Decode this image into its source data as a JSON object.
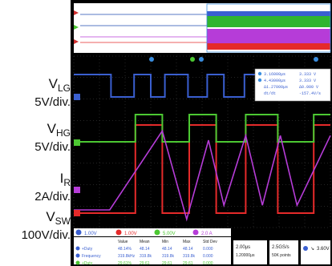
{
  "labels": {
    "vlg": {
      "name": "V",
      "sub": "LG",
      "scale": "5V/div."
    },
    "vhg": {
      "name": "V",
      "sub": "HG",
      "scale": "5V/div."
    },
    "ir": {
      "name": "I",
      "sub": "R",
      "scale": "2A/div."
    },
    "vsw": {
      "name": "V",
      "sub": "SW",
      "scale": "100V/div."
    }
  },
  "colors": {
    "vlg": "#3a5fd0",
    "vhg": "#4cc832",
    "ir": "#b63cd8",
    "vsw": "#e52a2a",
    "grid": "#5a5a5a",
    "background": "#000000",
    "panel": "#ffffff"
  },
  "cursor_box": {
    "rows": [
      {
        "a": "3.16000μs",
        "b": "3.333 V"
      },
      {
        "a": "4.43000μs",
        "b": "3.333 V"
      },
      {
        "a": "Δ1.27000μs",
        "b": "Δ0.000 V"
      },
      {
        "a": "dt/dt",
        "b": "-157.4V/s"
      }
    ]
  },
  "measurements": {
    "header": [
      "1.00V",
      "1.00V",
      "5.00V",
      "2.0 A"
    ],
    "columns": [
      "Value",
      "Mean",
      "Min",
      "Max",
      "Std Dev"
    ],
    "rows": [
      {
        "label": "+Duty",
        "values": [
          "48.14%",
          "48.14",
          "48.14",
          "48.14",
          "0.000"
        ]
      },
      {
        "label": "Frequency",
        "values": [
          "319.8kHz",
          "319.8k",
          "319.8k",
          "319.8k",
          "0.000"
        ]
      },
      {
        "label": "+Duty",
        "values": [
          "29.61%",
          "29.61",
          "29.61",
          "29.61",
          "0.000"
        ]
      }
    ]
  },
  "timebase": {
    "per_div": "2.00μs",
    "position": "1.20000μs"
  },
  "acquisition": {
    "rate": "2.5GS/s",
    "points": "50K points"
  },
  "trigger": {
    "level": "3.60V"
  },
  "chart_data": {
    "type": "line",
    "xlabel": "",
    "ylabel": "",
    "xlim": [
      0,
      10
    ],
    "series": [
      {
        "name": "V_LG",
        "x": [
          0,
          1.45,
          1.45,
          2.35,
          2.35,
          3.0,
          3.0,
          3.55,
          3.55,
          4.45,
          4.45,
          5.2,
          5.2,
          5.85,
          5.85,
          6.65,
          6.65,
          7.3,
          7.3,
          8.0,
          8.0,
          8.6,
          8.6,
          9.3,
          9.3,
          10
        ],
        "values": [
          1,
          1,
          0,
          0,
          1,
          1,
          0,
          0,
          1,
          1,
          0,
          0,
          1,
          1,
          0,
          0,
          1,
          1,
          0,
          0,
          1,
          1,
          0,
          0,
          1,
          1
        ]
      },
      {
        "name": "V_HG",
        "x": [
          0,
          2.4,
          2.4,
          3.45,
          3.45,
          4.5,
          4.5,
          5.55,
          5.55,
          6.7,
          6.7,
          7.95,
          7.95,
          9.35,
          9.35,
          10
        ],
        "values": [
          0,
          0,
          1,
          1,
          0,
          0,
          1,
          1,
          0,
          0,
          1,
          1,
          0,
          0,
          1,
          1
        ]
      },
      {
        "name": "I_R",
        "x": [
          0,
          1.4,
          3.45,
          4.4,
          5.25,
          5.85,
          6.7,
          7.35,
          8.05,
          8.7,
          10
        ],
        "values": [
          0,
          0,
          1.7,
          -0.2,
          1.5,
          0.1,
          1.6,
          0.1,
          1.6,
          0.1,
          1.6
        ]
      },
      {
        "name": "V_SW",
        "x": [
          0,
          2.4,
          2.4,
          3.45,
          3.45,
          4.5,
          4.5,
          5.55,
          5.55,
          6.7,
          6.7,
          7.95,
          7.95,
          9.35,
          9.35,
          10
        ],
        "values": [
          0,
          0,
          1,
          1,
          0,
          0,
          1,
          1,
          0,
          0,
          1,
          1,
          0,
          0,
          1,
          1
        ]
      }
    ]
  }
}
